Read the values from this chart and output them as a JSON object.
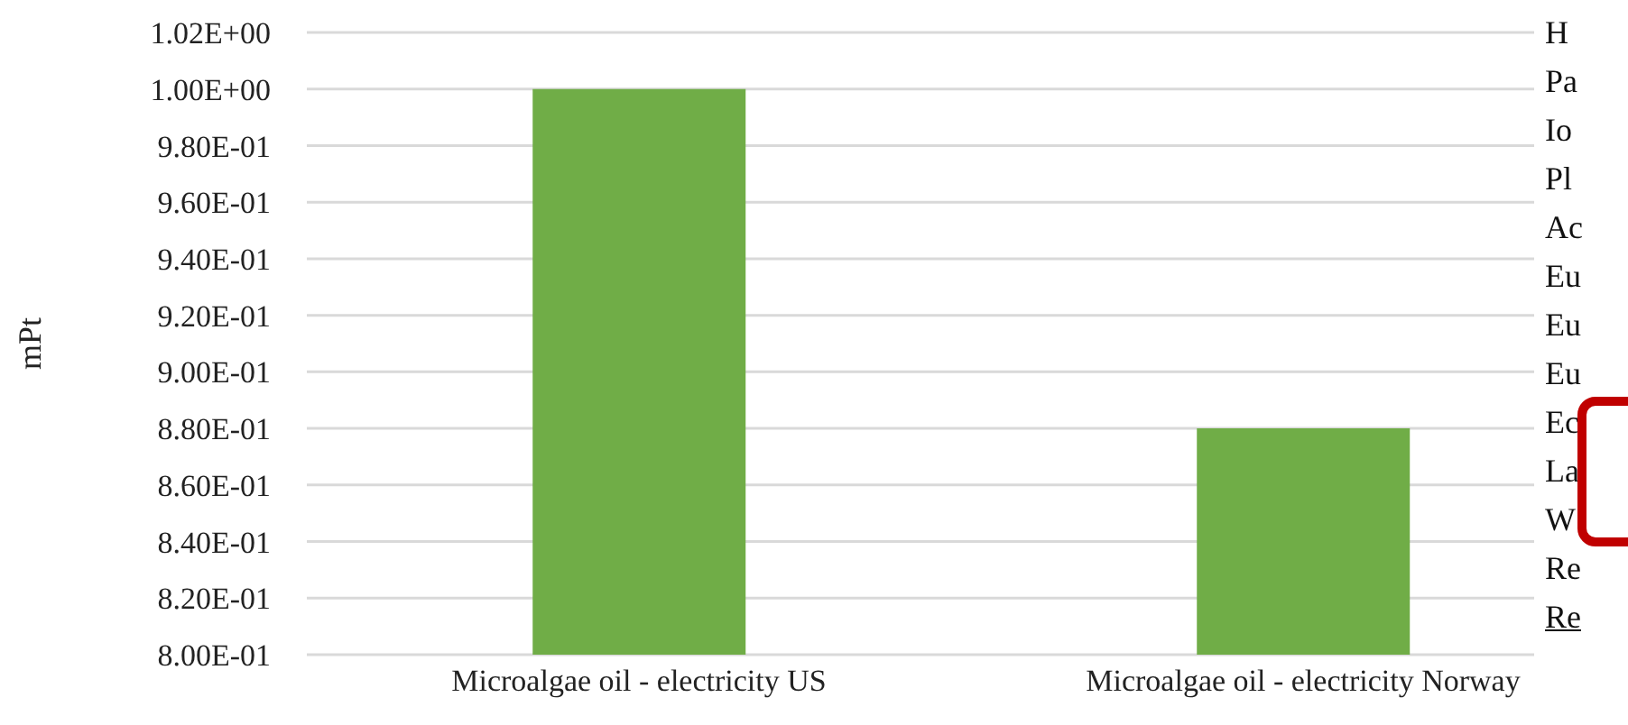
{
  "chart_data": {
    "type": "bar",
    "ylabel": "mPt",
    "categories": [
      "Microalgae oil - electricity US",
      "Microalgae oil - electricity Norway"
    ],
    "values": [
      1.0,
      0.88
    ],
    "color": "#70ad47",
    "ylim": [
      0.8,
      1.02
    ],
    "yticks": [
      {
        "value": 0.8,
        "label": "8.00E-01"
      },
      {
        "value": 0.82,
        "label": "8.20E-01"
      },
      {
        "value": 0.84,
        "label": "8.40E-01"
      },
      {
        "value": 0.86,
        "label": "8.60E-01"
      },
      {
        "value": 0.88,
        "label": "8.80E-01"
      },
      {
        "value": 0.9,
        "label": "9.00E-01"
      },
      {
        "value": 0.92,
        "label": "9.20E-01"
      },
      {
        "value": 0.94,
        "label": "9.40E-01"
      },
      {
        "value": 0.96,
        "label": "9.60E-01"
      },
      {
        "value": 0.98,
        "label": "9.80E-01"
      },
      {
        "value": 1.0,
        "label": "1.00E+00"
      },
      {
        "value": 1.02,
        "label": "1.02E+00"
      }
    ],
    "grid": "y",
    "annotations": [
      "H",
      "Pa",
      "Io",
      "Pl",
      "Ac",
      "Eu",
      "Eu",
      "Eu",
      "Ec",
      "La",
      "W",
      "Re",
      "Re"
    ]
  }
}
